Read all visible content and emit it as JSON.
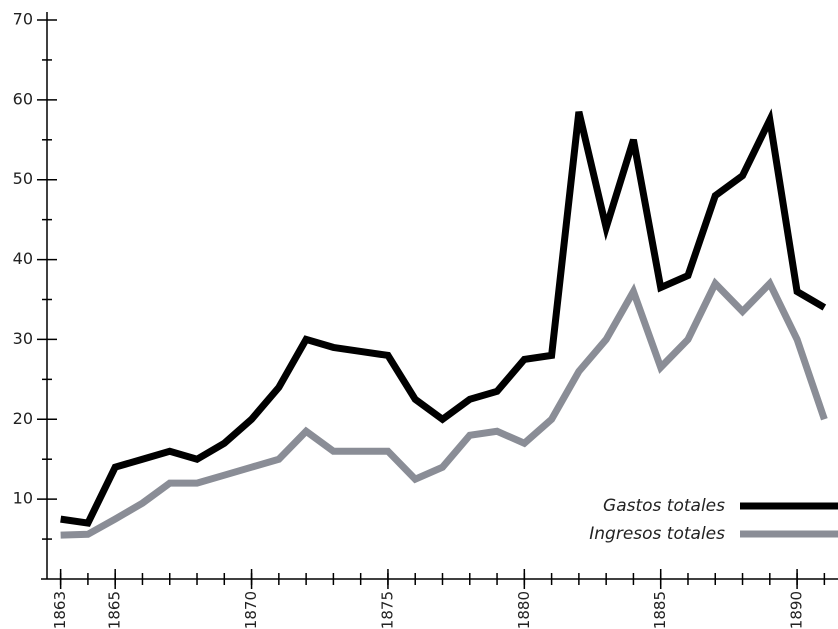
{
  "chart_data": {
    "type": "line",
    "x": [
      1863,
      1864,
      1865,
      1866,
      1867,
      1868,
      1869,
      1870,
      1871,
      1872,
      1873,
      1874,
      1875,
      1876,
      1877,
      1878,
      1879,
      1880,
      1881,
      1882,
      1883,
      1884,
      1885,
      1886,
      1887,
      1888,
      1889,
      1890,
      1891
    ],
    "series": [
      {
        "name": "Gastos totales",
        "color": "#000000",
        "values": [
          7.5,
          7,
          14,
          15,
          16,
          15,
          17,
          20,
          24,
          30,
          29,
          28.5,
          28,
          22.5,
          20,
          22.5,
          23.5,
          27.5,
          28,
          58.5,
          44,
          55,
          36.5,
          38,
          48,
          50.5,
          57.5,
          36,
          34
        ]
      },
      {
        "name": "Ingresos totales",
        "color": "#8a8d96",
        "values": [
          5.5,
          5.6,
          7.5,
          9.5,
          12,
          12,
          13,
          14,
          15,
          18.5,
          16,
          16,
          16,
          12.5,
          14,
          18,
          18.5,
          17,
          20,
          26,
          30,
          36,
          26.5,
          30,
          37,
          33.5,
          37,
          30,
          20
        ]
      }
    ],
    "xlim": [
      1862.5,
      1891.5
    ],
    "xticks": [
      1863,
      1865,
      1870,
      1875,
      1880,
      1885,
      1890
    ],
    "ylim": [
      0,
      70
    ],
    "yticks": [
      10,
      20,
      30,
      40,
      50,
      60,
      70
    ],
    "legend": "lower right"
  }
}
